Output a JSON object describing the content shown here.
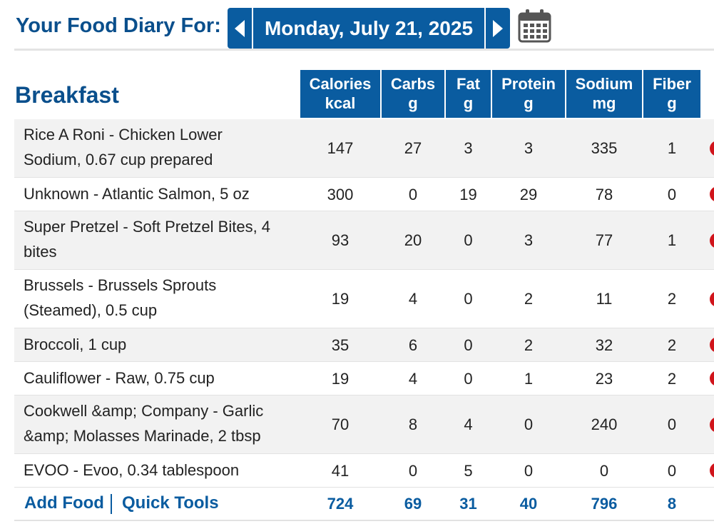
{
  "header": {
    "title": "Your Food Diary For:",
    "date": "Monday, July 21, 2025",
    "prev_icon": "triangle-left-icon",
    "next_icon": "triangle-right-icon",
    "calendar_icon": "calendar-icon"
  },
  "meal": {
    "title": "Breakfast",
    "columns": [
      {
        "name": "Calories",
        "unit": "kcal"
      },
      {
        "name": "Carbs",
        "unit": "g"
      },
      {
        "name": "Fat",
        "unit": "g"
      },
      {
        "name": "Protein",
        "unit": "g"
      },
      {
        "name": "Sodium",
        "unit": "mg"
      },
      {
        "name": "Fiber",
        "unit": "g"
      }
    ],
    "entries": [
      {
        "line1": "Rice A Roni - Chicken Lower",
        "line2": "Sodium, 0.67 cup prepared",
        "values": [
          "147",
          "27",
          "3",
          "3",
          "335",
          "1"
        ]
      },
      {
        "line1": "Unknown - Atlantic Salmon, 5 oz",
        "line2": "",
        "values": [
          "300",
          "0",
          "19",
          "29",
          "78",
          "0"
        ]
      },
      {
        "line1": "Super Pretzel - Soft Pretzel Bites, 4",
        "line2": "bites",
        "values": [
          "93",
          "20",
          "0",
          "3",
          "77",
          "1"
        ]
      },
      {
        "line1": "Brussels - Brussels Sprouts",
        "line2": "(Steamed), 0.5 cup",
        "values": [
          "19",
          "4",
          "0",
          "2",
          "11",
          "2"
        ]
      },
      {
        "line1": "Broccoli, 1 cup",
        "line2": "",
        "values": [
          "35",
          "6",
          "0",
          "2",
          "32",
          "2"
        ]
      },
      {
        "line1": "Cauliflower - Raw, 0.75 cup",
        "line2": "",
        "values": [
          "19",
          "4",
          "0",
          "1",
          "23",
          "2"
        ]
      },
      {
        "line1": "Cookwell &amp; Company - Garlic",
        "line2": "&amp; Molasses Marinade, 2 tbsp",
        "values": [
          "70",
          "8",
          "4",
          "0",
          "240",
          "0"
        ]
      },
      {
        "line1": "EVOO - Evoo, 0.34 tablespoon",
        "line2": "",
        "values": [
          "41",
          "0",
          "5",
          "0",
          "0",
          "0"
        ]
      }
    ],
    "add_food_label": "Add Food",
    "quick_tools_label": "Quick Tools",
    "totals": [
      "724",
      "69",
      "31",
      "40",
      "796",
      "8"
    ]
  },
  "colors": {
    "brand_blue": "#0a5ca0",
    "title_blue": "#0a4f8c",
    "delete_red": "#d0141b",
    "row_shade": "#f2f2f2"
  }
}
